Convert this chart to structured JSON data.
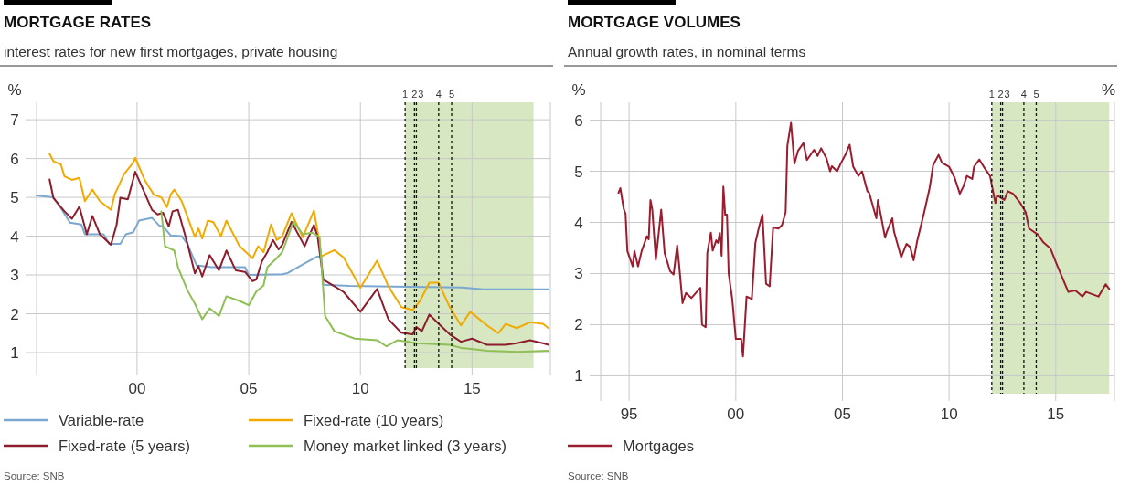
{
  "chart_data": [
    {
      "type": "line",
      "title": "MORTGAGE RATES",
      "subtitle": "interest rates for new first mortgages, private housing",
      "ylabel": "%",
      "annotations": [
        "Source: SNB"
      ],
      "xlim": [
        "1996-01",
        "2019-01"
      ],
      "xticks": [
        {
          "value": "2000-07",
          "label": "00"
        },
        {
          "value": "2005-07",
          "label": "05"
        },
        {
          "value": "2010-07",
          "label": "10"
        },
        {
          "value": "2015-07",
          "label": "15"
        }
      ],
      "ylim": [
        0.6,
        7.45
      ],
      "yticks": [
        1,
        2,
        3,
        4,
        5,
        6,
        7
      ],
      "grid": true,
      "legend": "bottom",
      "line_style": "solid",
      "marker": "none",
      "bands": [
        {
          "axis": "x",
          "from": "2012-07",
          "to": "2018-04",
          "color": "#d6e7c2"
        }
      ],
      "ref_lines": [
        {
          "axis": "x",
          "value": "2012-07",
          "label": "1",
          "line_style": "dashed",
          "color": "#111111"
        },
        {
          "axis": "x",
          "value": "2012-12",
          "label": "2",
          "line_style": "dashed",
          "color": "#111111"
        },
        {
          "axis": "x",
          "value": "2013-01",
          "label": "3",
          "line_style": "dashed",
          "color": "#111111"
        },
        {
          "axis": "x",
          "value": "2014-01",
          "label": "4",
          "line_style": "dashed",
          "color": "#111111"
        },
        {
          "axis": "x",
          "value": "2014-08",
          "label": "5",
          "line_style": "dashed",
          "color": "#111111"
        }
      ],
      "series": [
        {
          "name": "Variable-rate",
          "color": "#7ba7d0",
          "x": [
            "1996-01",
            "1996-10",
            "1997-01",
            "1997-07",
            "1998-01",
            "1998-03",
            "1999-01",
            "1999-04",
            "1999-10",
            "2000-01",
            "2000-05",
            "2000-08",
            "2001-03",
            "2001-07",
            "2001-09",
            "2002-01",
            "2002-07",
            "2002-10",
            "2003-03",
            "2003-11",
            "2005-05",
            "2005-07",
            "2007-01",
            "2007-04",
            "2008-01",
            "2008-08",
            "2008-10",
            "2008-11",
            "2010-01",
            "2012-01",
            "2015-01",
            "2016-01",
            "2018-12"
          ],
          "values": [
            5.05,
            5.0,
            4.8,
            4.35,
            4.3,
            4.05,
            4.05,
            3.8,
            3.8,
            4.05,
            4.1,
            4.4,
            4.47,
            4.27,
            4.25,
            4.02,
            4.0,
            3.8,
            3.25,
            3.2,
            3.2,
            3.0,
            3.02,
            3.05,
            3.3,
            3.48,
            3.45,
            2.75,
            2.72,
            2.7,
            2.68,
            2.63,
            2.63
          ]
        },
        {
          "name": "Fixed-rate (10 years)",
          "color": "#f2aa00",
          "x": [
            "1996-08",
            "1996-10",
            "1997-02",
            "1997-04",
            "1997-08",
            "1997-12",
            "1998-03",
            "1998-07",
            "1998-11",
            "1999-05",
            "1999-07",
            "1999-12",
            "2000-05",
            "2000-06",
            "2000-11",
            "2001-04",
            "2001-08",
            "2001-11",
            "2002-01",
            "2002-03",
            "2002-07",
            "2003-02",
            "2003-04",
            "2003-06",
            "2003-09",
            "2003-12",
            "2004-04",
            "2004-07",
            "2005-02",
            "2005-09",
            "2005-12",
            "2006-03",
            "2006-07",
            "2006-10",
            "2007-01",
            "2007-06",
            "2007-12",
            "2008-06",
            "2008-08",
            "2008-10",
            "2009-05",
            "2009-10",
            "2010-07",
            "2011-04",
            "2011-10",
            "2012-05",
            "2012-11",
            "2013-03",
            "2013-08",
            "2014-01",
            "2014-07",
            "2015-01",
            "2015-06",
            "2016-03",
            "2016-09",
            "2017-01",
            "2017-07",
            "2018-02",
            "2018-09",
            "2018-12"
          ],
          "values": [
            6.12,
            5.93,
            5.85,
            5.54,
            5.45,
            5.5,
            4.9,
            5.2,
            4.9,
            4.68,
            5.07,
            5.6,
            5.9,
            6.02,
            5.45,
            5.07,
            5.0,
            4.75,
            5.07,
            5.2,
            4.9,
            3.98,
            4.2,
            3.94,
            4.4,
            4.36,
            4.0,
            4.4,
            3.74,
            3.43,
            3.74,
            3.59,
            4.3,
            3.9,
            4.0,
            4.59,
            3.97,
            4.66,
            4.11,
            3.48,
            3.64,
            3.45,
            2.67,
            3.37,
            2.71,
            2.17,
            2.1,
            2.33,
            2.8,
            2.8,
            2.17,
            1.7,
            2.05,
            1.7,
            1.5,
            1.74,
            1.63,
            1.78,
            1.74,
            1.63
          ]
        },
        {
          "name": "Fixed-rate (5 years)",
          "color": "#8c1d2c",
          "x": [
            "1996-08",
            "1996-10",
            "1996-12",
            "1997-04",
            "1997-08",
            "1997-12",
            "1998-04",
            "1998-07",
            "1998-11",
            "1999-05",
            "1999-08",
            "1999-10",
            "2000-02",
            "2000-06",
            "2000-10",
            "2001-03",
            "2001-06",
            "2001-09",
            "2001-12",
            "2002-02",
            "2002-05",
            "2002-10",
            "2003-02",
            "2003-04",
            "2003-06",
            "2003-10",
            "2004-03",
            "2004-07",
            "2004-12",
            "2005-05",
            "2005-09",
            "2005-11",
            "2006-02",
            "2006-05",
            "2006-08",
            "2006-11",
            "2007-01",
            "2007-06",
            "2008-01",
            "2008-06",
            "2008-08",
            "2008-11",
            "2009-05",
            "2009-10",
            "2010-07",
            "2011-04",
            "2011-10",
            "2012-05",
            "2012-11",
            "2013-01",
            "2013-04",
            "2013-08",
            "2014-01",
            "2014-07",
            "2015-01",
            "2015-07",
            "2016-03",
            "2017-01",
            "2017-07",
            "2018-02",
            "2018-09",
            "2018-12"
          ],
          "values": [
            5.46,
            4.99,
            4.87,
            4.64,
            4.45,
            4.76,
            4.05,
            4.52,
            4.05,
            3.78,
            4.29,
            4.99,
            4.95,
            5.66,
            5.23,
            4.68,
            4.56,
            4.6,
            4.25,
            4.64,
            4.68,
            3.82,
            3.04,
            3.23,
            2.96,
            3.51,
            3.12,
            3.63,
            3.12,
            3.08,
            2.84,
            2.88,
            3.35,
            3.59,
            3.9,
            3.66,
            3.78,
            4.37,
            3.74,
            4.29,
            3.98,
            2.88,
            2.71,
            2.56,
            2.05,
            2.64,
            1.86,
            1.51,
            1.47,
            1.66,
            1.55,
            1.98,
            1.74,
            1.47,
            1.28,
            1.36,
            1.2,
            1.2,
            1.24,
            1.32,
            1.24,
            1.2
          ]
        },
        {
          "name": "Money market linked (3 years)",
          "color": "#8fbf55",
          "x": [
            "2001-08",
            "2001-10",
            "2002-03",
            "2002-05",
            "2002-10",
            "2003-02",
            "2003-06",
            "2003-10",
            "2004-03",
            "2004-07",
            "2005-02",
            "2005-07",
            "2005-11",
            "2006-03",
            "2006-05",
            "2006-10",
            "2007-01",
            "2007-07",
            "2007-12",
            "2008-05",
            "2008-09",
            "2008-12",
            "2009-05",
            "2010-04",
            "2011-04",
            "2011-09",
            "2012-03",
            "2013-01",
            "2014-07",
            "2015-01",
            "2016-03",
            "2017-07",
            "2018-12"
          ],
          "values": [
            4.64,
            3.74,
            3.63,
            3.2,
            2.61,
            2.26,
            1.86,
            2.14,
            1.94,
            2.45,
            2.33,
            2.22,
            2.57,
            2.73,
            3.2,
            3.43,
            3.59,
            4.37,
            4.05,
            4.09,
            3.98,
            1.94,
            1.55,
            1.36,
            1.32,
            1.16,
            1.32,
            1.24,
            1.2,
            1.12,
            1.05,
            1.02,
            1.05
          ]
        }
      ]
    },
    {
      "type": "line",
      "title": "MORTGAGE VOLUMES",
      "subtitle": "Annual growth rates, in nominal terms",
      "ylabel": "%",
      "y2label": "%",
      "annotations": [
        "Source: SNB"
      ],
      "xlim": [
        "1994-03",
        "2018-04"
      ],
      "xticks": [
        {
          "value": "1995-07",
          "label": "95"
        },
        {
          "value": "2000-07",
          "label": "00"
        },
        {
          "value": "2005-07",
          "label": "05"
        },
        {
          "value": "2010-07",
          "label": "10"
        },
        {
          "value": "2015-07",
          "label": "15"
        }
      ],
      "ylim": [
        0.65,
        6.35
      ],
      "yticks": [
        1,
        2,
        3,
        4,
        5,
        6
      ],
      "grid": true,
      "legend": "bottom",
      "line_style": "solid",
      "marker": "none",
      "bands": [
        {
          "axis": "x",
          "from": "2012-07",
          "to": "2018-01",
          "color": "#d6e7c2"
        }
      ],
      "ref_lines": [
        {
          "axis": "x",
          "value": "2012-07",
          "label": "1",
          "line_style": "dashed",
          "color": "#111111"
        },
        {
          "axis": "x",
          "value": "2012-12",
          "label": "2",
          "line_style": "dashed",
          "color": "#111111"
        },
        {
          "axis": "x",
          "value": "2013-01",
          "label": "3",
          "line_style": "dashed",
          "color": "#111111"
        },
        {
          "axis": "x",
          "value": "2014-01",
          "label": "4",
          "line_style": "dashed",
          "color": "#111111"
        },
        {
          "axis": "x",
          "value": "2014-08",
          "label": "5",
          "line_style": "dashed",
          "color": "#111111"
        }
      ],
      "series": [
        {
          "name": "Mortgages",
          "color": "#9b1c2e",
          "x": [
            "1995-01",
            "1995-02",
            "1995-04",
            "1995-05",
            "1995-06",
            "1995-09",
            "1995-10",
            "1995-12",
            "1996-02",
            "1996-05",
            "1996-06",
            "1996-07",
            "1996-08",
            "1996-10",
            "1997-01",
            "1997-03",
            "1997-06",
            "1997-08",
            "1997-10",
            "1997-11",
            "1998-01",
            "1998-03",
            "1998-06",
            "1998-08",
            "1998-11",
            "1998-12",
            "1999-02",
            "1999-03",
            "1999-05",
            "1999-06",
            "1999-08",
            "1999-09",
            "1999-10",
            "1999-11",
            "1999-12",
            "2000-01",
            "2000-02",
            "2000-03",
            "2000-05",
            "2000-07",
            "2000-10",
            "2000-11",
            "2001-01",
            "2001-04",
            "2001-06",
            "2001-08",
            "2001-10",
            "2001-12",
            "2002-02",
            "2002-04",
            "2002-07",
            "2002-09",
            "2002-11",
            "2002-12",
            "2003-02",
            "2003-04",
            "2003-06",
            "2003-09",
            "2003-11",
            "2004-03",
            "2004-05",
            "2004-07",
            "2004-10",
            "2004-12",
            "2005-01",
            "2005-04",
            "2005-06",
            "2005-09",
            "2005-11",
            "2006-01",
            "2006-04",
            "2006-06",
            "2006-09",
            "2006-10",
            "2007-02",
            "2007-03",
            "2007-07",
            "2007-08",
            "2007-11",
            "2007-12",
            "2008-04",
            "2008-07",
            "2008-09",
            "2008-11",
            "2009-01",
            "2009-05",
            "2009-08",
            "2009-10",
            "2010-01",
            "2010-03",
            "2010-07",
            "2010-10",
            "2011-01",
            "2011-03",
            "2011-05",
            "2011-08",
            "2011-09",
            "2011-12",
            "2012-03",
            "2012-06",
            "2012-07",
            "2012-09",
            "2012-10",
            "2013-02",
            "2013-04",
            "2013-07",
            "2013-11",
            "2014-02",
            "2014-04",
            "2014-09",
            "2014-12",
            "2015-04",
            "2015-08",
            "2016-02",
            "2016-06",
            "2016-10",
            "2016-12",
            "2017-07",
            "2017-11",
            "2018-01"
          ],
          "values": [
            4.58,
            4.67,
            4.26,
            4.17,
            3.44,
            3.14,
            3.44,
            3.14,
            3.44,
            3.73,
            3.67,
            4.44,
            4.25,
            3.27,
            4.25,
            3.4,
            3.05,
            2.98,
            3.55,
            3.2,
            2.42,
            2.62,
            2.52,
            2.6,
            2.72,
            2.0,
            1.95,
            3.4,
            3.8,
            3.45,
            3.65,
            3.6,
            3.8,
            3.35,
            4.7,
            4.15,
            4.15,
            3.0,
            2.5,
            1.72,
            1.72,
            1.38,
            2.55,
            2.5,
            3.6,
            3.9,
            4.15,
            2.8,
            2.75,
            3.9,
            3.88,
            3.95,
            4.2,
            5.5,
            5.95,
            5.15,
            5.4,
            5.55,
            5.22,
            5.42,
            5.3,
            5.45,
            5.25,
            5.0,
            5.1,
            5.0,
            5.15,
            5.35,
            5.52,
            5.09,
            4.91,
            5.0,
            4.61,
            4.58,
            4.08,
            4.44,
            3.7,
            3.82,
            4.08,
            3.82,
            3.32,
            3.58,
            3.52,
            3.26,
            3.64,
            4.2,
            4.67,
            5.12,
            5.32,
            5.17,
            5.09,
            4.88,
            4.56,
            4.7,
            4.91,
            4.85,
            5.09,
            5.23,
            5.06,
            4.91,
            4.73,
            4.38,
            4.53,
            4.44,
            4.61,
            4.56,
            4.38,
            4.2,
            3.88,
            3.76,
            3.61,
            3.49,
            3.14,
            2.64,
            2.67,
            2.55,
            2.64,
            2.55,
            2.79,
            2.7
          ]
        }
      ]
    }
  ]
}
